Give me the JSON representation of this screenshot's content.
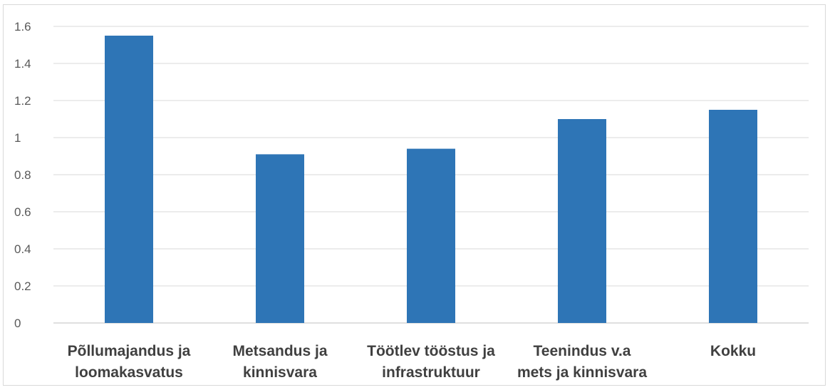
{
  "chart_data": {
    "type": "bar",
    "categories": [
      [
        "Põllumajandus ja",
        "loomakasvatus"
      ],
      [
        "Metsandus ja",
        "kinnisvara"
      ],
      [
        "Töötlev tööstus ja",
        "infrastruktuur"
      ],
      [
        "Teenindus v.a",
        "mets ja kinnisvara"
      ],
      [
        "Kokku"
      ]
    ],
    "values": [
      1.55,
      0.91,
      0.94,
      1.1,
      1.15
    ],
    "ylim": [
      0,
      1.6
    ],
    "yticks": [
      "0",
      "0.2",
      "0.4",
      "0.6",
      "0.8",
      "1",
      "1.2",
      "1.4",
      "1.6"
    ],
    "grid": true,
    "bar_color": "#2e75b6",
    "title": "",
    "xlabel": "",
    "ylabel": ""
  }
}
